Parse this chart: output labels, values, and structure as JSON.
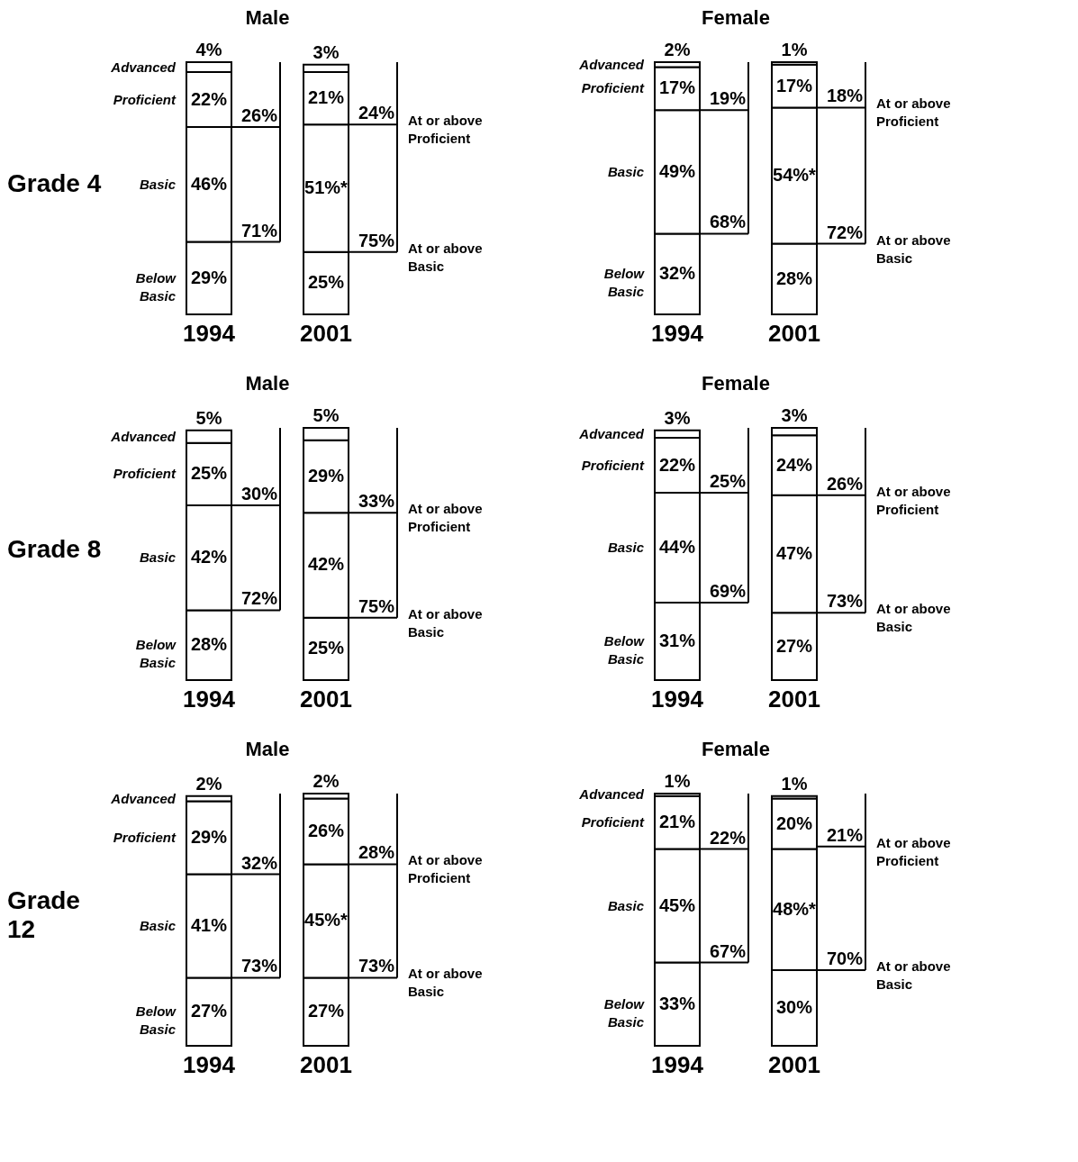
{
  "chart_data": [
    {
      "type": "bar",
      "stacked": true,
      "title": "Male",
      "ylabel": "Grade 4",
      "categories": [
        "1994",
        "2001"
      ],
      "series": [
        {
          "name": "Below Basic",
          "color": "#ffffff",
          "values": [
            29,
            25
          ],
          "value_labels": [
            "29%",
            "25%"
          ]
        },
        {
          "name": "Basic",
          "color": "#ffffff",
          "values": [
            46,
            51
          ],
          "value_labels": [
            "46%",
            "51%*"
          ]
        },
        {
          "name": "Proficient",
          "color": "#ffffff",
          "values": [
            22,
            21
          ],
          "value_labels": [
            "22%",
            "21%"
          ]
        },
        {
          "name": "Advanced",
          "color": "#ffffff",
          "values": [
            4,
            3
          ],
          "value_labels": [
            "4%",
            "3%"
          ]
        }
      ],
      "annotations": [
        {
          "text": "26%",
          "x": "1994",
          "y": 75
        },
        {
          "text": "71%",
          "x": "1994",
          "y": 29
        },
        {
          "text": "24%",
          "x": "2001",
          "y": 76
        },
        {
          "text": "75%",
          "x": "2001",
          "y": 25
        },
        "At or above Proficient",
        "At or above Basic"
      ]
    },
    {
      "type": "bar",
      "stacked": true,
      "title": "Female",
      "categories": [
        "1994",
        "2001"
      ],
      "series": [
        {
          "name": "Below Basic",
          "color": "#ffffff",
          "values": [
            32,
            28
          ],
          "value_labels": [
            "32%",
            "28%"
          ]
        },
        {
          "name": "Basic",
          "color": "#ffffff",
          "values": [
            49,
            54
          ],
          "value_labels": [
            "49%",
            "54%*"
          ]
        },
        {
          "name": "Proficient",
          "color": "#ffffff",
          "values": [
            17,
            17
          ],
          "value_labels": [
            "17%",
            "17%"
          ]
        },
        {
          "name": "Advanced",
          "color": "#ffffff",
          "values": [
            2,
            1
          ],
          "value_labels": [
            "2%",
            "1%"
          ]
        }
      ],
      "annotations": [
        {
          "text": "19%",
          "x": "1994",
          "y": 81
        },
        {
          "text": "68%",
          "x": "1994",
          "y": 32
        },
        {
          "text": "18%",
          "x": "2001",
          "y": 82
        },
        {
          "text": "72%",
          "x": "2001",
          "y": 28
        },
        "At or above Proficient",
        "At or above Basic"
      ]
    },
    {
      "type": "bar",
      "stacked": true,
      "title": "Male",
      "ylabel": "Grade 8",
      "categories": [
        "1994",
        "2001"
      ],
      "series": [
        {
          "name": "Below Basic",
          "color": "#ffffff",
          "values": [
            28,
            25
          ],
          "value_labels": [
            "28%",
            "25%"
          ]
        },
        {
          "name": "Basic",
          "color": "#ffffff",
          "values": [
            42,
            42
          ],
          "value_labels": [
            "42%",
            "42%"
          ]
        },
        {
          "name": "Proficient",
          "color": "#ffffff",
          "values": [
            25,
            29
          ],
          "value_labels": [
            "25%",
            "29%"
          ]
        },
        {
          "name": "Advanced",
          "color": "#ffffff",
          "values": [
            5,
            5
          ],
          "value_labels": [
            "5%",
            "5%"
          ]
        }
      ],
      "annotations": [
        {
          "text": "30%",
          "x": "1994",
          "y": 70
        },
        {
          "text": "72%",
          "x": "1994",
          "y": 28
        },
        {
          "text": "33%",
          "x": "2001",
          "y": 67
        },
        {
          "text": "75%",
          "x": "2001",
          "y": 25
        },
        "At or above Proficient",
        "At or above Basic"
      ]
    },
    {
      "type": "bar",
      "stacked": true,
      "title": "Female",
      "categories": [
        "1994",
        "2001"
      ],
      "series": [
        {
          "name": "Below Basic",
          "color": "#ffffff",
          "values": [
            31,
            27
          ],
          "value_labels": [
            "31%",
            "27%"
          ]
        },
        {
          "name": "Basic",
          "color": "#ffffff",
          "values": [
            44,
            47
          ],
          "value_labels": [
            "44%",
            "47%"
          ]
        },
        {
          "name": "Proficient",
          "color": "#ffffff",
          "values": [
            22,
            24
          ],
          "value_labels": [
            "22%",
            "24%"
          ]
        },
        {
          "name": "Advanced",
          "color": "#ffffff",
          "values": [
            3,
            3
          ],
          "value_labels": [
            "3%",
            "3%"
          ]
        }
      ],
      "annotations": [
        {
          "text": "25%",
          "x": "1994",
          "y": 75
        },
        {
          "text": "69%",
          "x": "1994",
          "y": 31
        },
        {
          "text": "26%",
          "x": "2001",
          "y": 74
        },
        {
          "text": "73%",
          "x": "2001",
          "y": 27
        },
        "At or above Proficient",
        "At or above Basic"
      ]
    },
    {
      "type": "bar",
      "stacked": true,
      "title": "Male",
      "ylabel": "Grade 12",
      "categories": [
        "1994",
        "2001"
      ],
      "series": [
        {
          "name": "Below Basic",
          "color": "#ffffff",
          "values": [
            27,
            27
          ],
          "value_labels": [
            "27%",
            "27%"
          ]
        },
        {
          "name": "Basic",
          "color": "#ffffff",
          "values": [
            41,
            45
          ],
          "value_labels": [
            "41%",
            "45%*"
          ]
        },
        {
          "name": "Proficient",
          "color": "#ffffff",
          "values": [
            29,
            26
          ],
          "value_labels": [
            "29%",
            "26%"
          ]
        },
        {
          "name": "Advanced",
          "color": "#ffffff",
          "values": [
            2,
            2
          ],
          "value_labels": [
            "2%",
            "2%"
          ]
        }
      ],
      "annotations": [
        {
          "text": "32%",
          "x": "1994",
          "y": 68
        },
        {
          "text": "73%",
          "x": "1994",
          "y": 27
        },
        {
          "text": "28%",
          "x": "2001",
          "y": 72
        },
        {
          "text": "73%",
          "x": "2001",
          "y": 27
        },
        "At or above Proficient",
        "At or above Basic"
      ]
    },
    {
      "type": "bar",
      "stacked": true,
      "title": "Female",
      "categories": [
        "1994",
        "2001"
      ],
      "series": [
        {
          "name": "Below Basic",
          "color": "#ffffff",
          "values": [
            33,
            30
          ],
          "value_labels": [
            "33%",
            "30%"
          ]
        },
        {
          "name": "Basic",
          "color": "#ffffff",
          "values": [
            45,
            48
          ],
          "value_labels": [
            "45%",
            "48%*"
          ]
        },
        {
          "name": "Proficient",
          "color": "#ffffff",
          "values": [
            21,
            20
          ],
          "value_labels": [
            "21%",
            "20%"
          ]
        },
        {
          "name": "Advanced",
          "color": "#ffffff",
          "values": [
            1,
            1
          ],
          "value_labels": [
            "1%",
            "1%"
          ]
        }
      ],
      "annotations": [
        {
          "text": "22%",
          "x": "1994",
          "y": 78
        },
        {
          "text": "67%",
          "x": "1994",
          "y": 33
        },
        {
          "text": "21%",
          "x": "2001",
          "y": 79
        },
        {
          "text": "70%",
          "x": "2001",
          "y": 30
        },
        "At or above Proficient",
        "At or above Basic"
      ]
    }
  ]
}
